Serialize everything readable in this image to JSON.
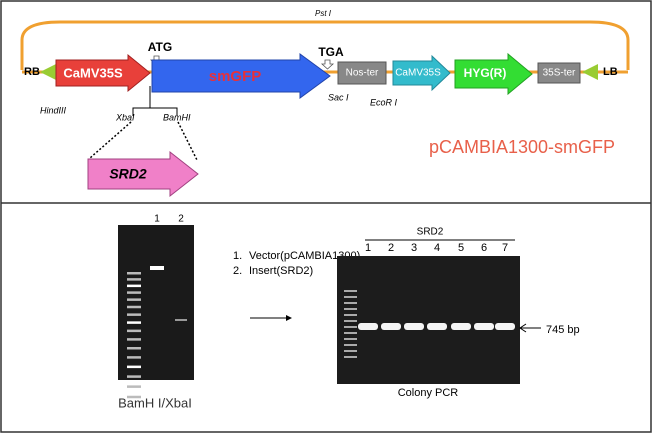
{
  "construct": {
    "pst_site": "Pst I",
    "rb": "RB",
    "lb": "LB",
    "promoter": "CaMV35S",
    "start_codon": "ATG",
    "gene": "smGFP",
    "stop_codon": "TGA",
    "terminator": "Nos-ter",
    "promoter2": "CaMV35S",
    "selection": "HYG(R)",
    "terminator2": "35S-ter",
    "hind_site": "HindIII",
    "xba_site": "XbaI",
    "bam_site": "BamHI",
    "sac_site": "Sac I",
    "eco_site": "EcoR I",
    "insert": "SRD2",
    "vector_name": "pCAMBIA1300-smGFP"
  },
  "digest_gel": {
    "lanes": [
      "1",
      "2"
    ],
    "legend": [
      {
        "number": "1.",
        "label": "Vector(pCAMBIA1300)"
      },
      {
        "number": "2.",
        "label": "Insert(SRD2)"
      }
    ],
    "caption": "BamH I/XbaI"
  },
  "pcr_gel": {
    "header": "SRD2",
    "lanes": [
      "1",
      "2",
      "3",
      "4",
      "5",
      "6",
      "7"
    ],
    "band_label": "745 bp",
    "caption": "Colony PCR"
  }
}
